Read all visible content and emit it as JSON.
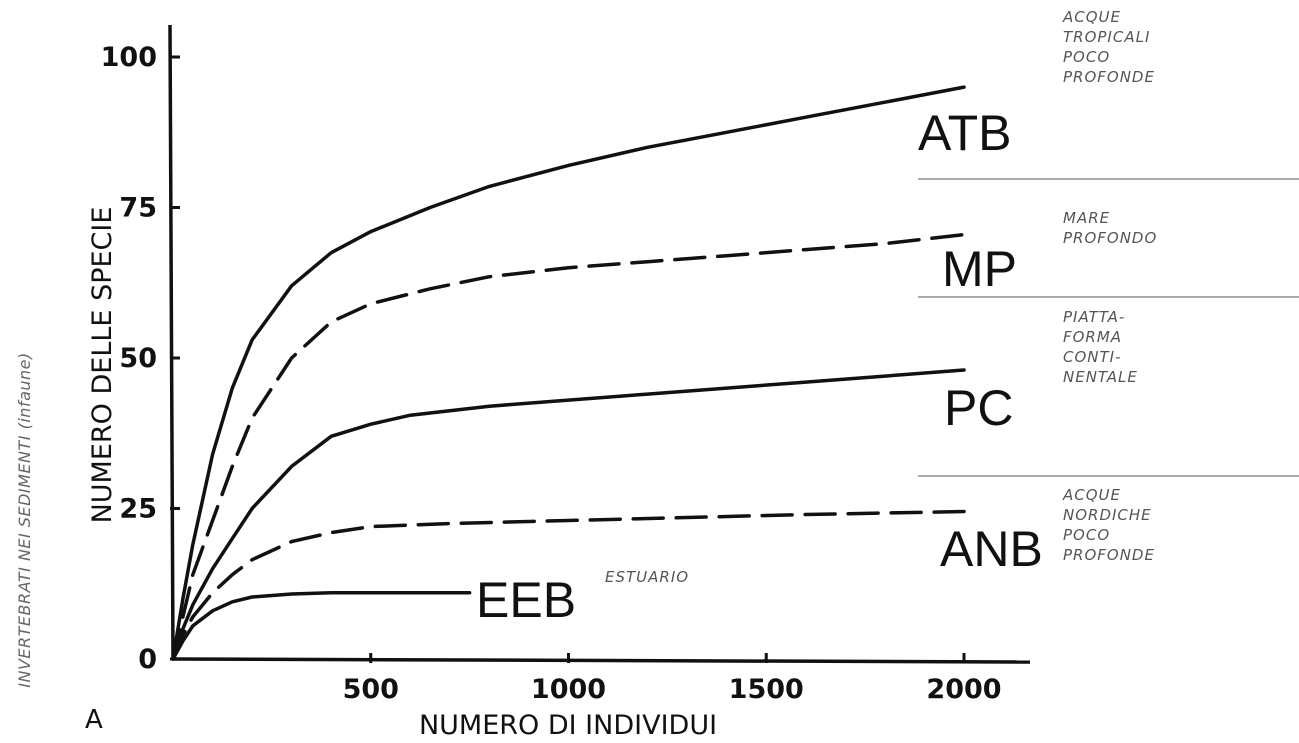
{
  "chart_data": {
    "type": "line",
    "panel_label": "A",
    "xlabel": "NUMERO DI INDIVIDUI",
    "ylabel": "NUMERO DELLE SPECIE",
    "side_label": "INVERTEBRATI NEI SEDIMENTI (infaune)",
    "xlim": [
      0,
      2100
    ],
    "ylim": [
      0,
      105
    ],
    "x_ticks": [
      500,
      1000,
      1500,
      2000
    ],
    "x_tick_labels": [
      "500",
      "1000",
      "1500",
      "2000"
    ],
    "y_ticks": [
      0,
      25,
      50,
      75,
      100
    ],
    "y_tick_labels": [
      "0",
      "25",
      "50",
      "75",
      "100"
    ],
    "grid": false,
    "series": [
      {
        "name": "ATB",
        "style": "solid",
        "note": [
          "ACQUE",
          "TROPICALI",
          "POCO",
          "PROFONDE"
        ],
        "x": [
          0,
          25,
          50,
          100,
          150,
          200,
          300,
          400,
          500,
          650,
          800,
          1000,
          1200,
          1400,
          1600,
          1800,
          2000
        ],
        "y": [
          0,
          10,
          19,
          34,
          45,
          53,
          62,
          67.5,
          71,
          75,
          78.5,
          82,
          85,
          87.5,
          90,
          92.5,
          95
        ]
      },
      {
        "name": "MP",
        "style": "dashed",
        "note": [
          "MARE",
          "PROFONDO"
        ],
        "x": [
          0,
          25,
          50,
          100,
          150,
          200,
          300,
          400,
          500,
          650,
          800,
          1000,
          1200,
          1400,
          1600,
          1800,
          2000
        ],
        "y": [
          0,
          7,
          14,
          23,
          32,
          40,
          50,
          56,
          59,
          61.5,
          63.5,
          65,
          66,
          67,
          68,
          69,
          70.5
        ]
      },
      {
        "name": "PC",
        "style": "solid",
        "note": [
          "PIATTA-",
          "FORMA",
          "CONTI-",
          "NENTALE"
        ],
        "x": [
          0,
          25,
          50,
          100,
          150,
          200,
          300,
          400,
          500,
          600,
          800,
          1000,
          1200,
          1400,
          1600,
          1800,
          2000
        ],
        "y": [
          0,
          5,
          9,
          15,
          20,
          25,
          32,
          37,
          39,
          40.5,
          42,
          43,
          44,
          45,
          46,
          47,
          48
        ]
      },
      {
        "name": "ANB",
        "style": "dashed",
        "note": [
          "ACQUE",
          "NORDICHE",
          "POCO",
          "PROFONDE"
        ],
        "x": [
          0,
          25,
          50,
          100,
          150,
          200,
          300,
          400,
          500,
          700,
          1000,
          1300,
          1600,
          2000
        ],
        "y": [
          0,
          4,
          7,
          11,
          14,
          16.5,
          19.5,
          21,
          22,
          22.5,
          23,
          23.5,
          24,
          24.5
        ]
      },
      {
        "name": "EEB",
        "style": "solid",
        "note": [
          "ESTUARIO"
        ],
        "x": [
          0,
          25,
          50,
          100,
          150,
          200,
          300,
          400,
          500,
          600,
          750
        ],
        "y": [
          0,
          3,
          5.5,
          8,
          9.5,
          10.3,
          10.8,
          11,
          11,
          11,
          11
        ]
      }
    ]
  }
}
